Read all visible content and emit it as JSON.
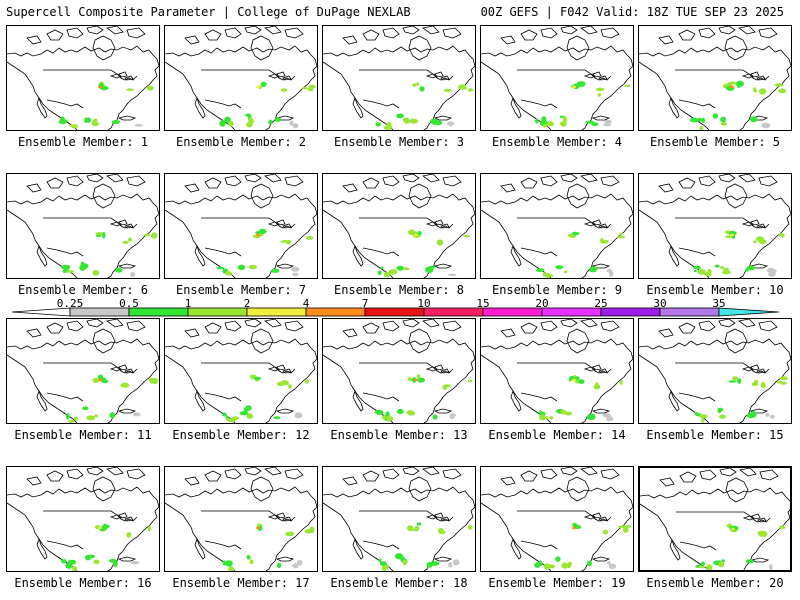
{
  "header": {
    "left": "Supercell Composite Parameter | College of DuPage NEXLAB",
    "right": "00Z GEFS | F042 Valid: 18Z TUE SEP 23 2025"
  },
  "members": [
    {
      "label": "Ensemble Member: 1"
    },
    {
      "label": "Ensemble Member: 2"
    },
    {
      "label": "Ensemble Member: 3"
    },
    {
      "label": "Ensemble Member: 4"
    },
    {
      "label": "Ensemble Member: 5"
    },
    {
      "label": "Ensemble Member: 6"
    },
    {
      "label": "Ensemble Member: 7"
    },
    {
      "label": "Ensemble Member: 8"
    },
    {
      "label": "Ensemble Member: 9"
    },
    {
      "label": "Ensemble Member: 10"
    },
    {
      "label": "Ensemble Member: 11"
    },
    {
      "label": "Ensemble Member: 12"
    },
    {
      "label": "Ensemble Member: 13"
    },
    {
      "label": "Ensemble Member: 14"
    },
    {
      "label": "Ensemble Member: 15"
    },
    {
      "label": "Ensemble Member: 16"
    },
    {
      "label": "Ensemble Member: 17"
    },
    {
      "label": "Ensemble Member: 18"
    },
    {
      "label": "Ensemble Member: 19"
    },
    {
      "label": "Ensemble Member: 20"
    }
  ],
  "colorbar": {
    "levels": [
      "0.25",
      "0.5",
      "1",
      "2",
      "4",
      "7",
      "10",
      "15",
      "20",
      "25",
      "30",
      "35"
    ],
    "colors": [
      "#ffffff",
      "#c8c8c8",
      "#32e632",
      "#9be632",
      "#f0f03c",
      "#ff8c1e",
      "#e61414",
      "#ff1e64",
      "#ff1ecd",
      "#e632ff",
      "#9b1ee6",
      "#b478e6",
      "#46e6e6"
    ]
  },
  "colors": {
    "outline": "#000000",
    "light_green": "#9be632",
    "green": "#32e632",
    "gray": "#c8c8c8",
    "yellow": "#f0f03c",
    "orange": "#ff8c1e",
    "red": "#e61414"
  }
}
